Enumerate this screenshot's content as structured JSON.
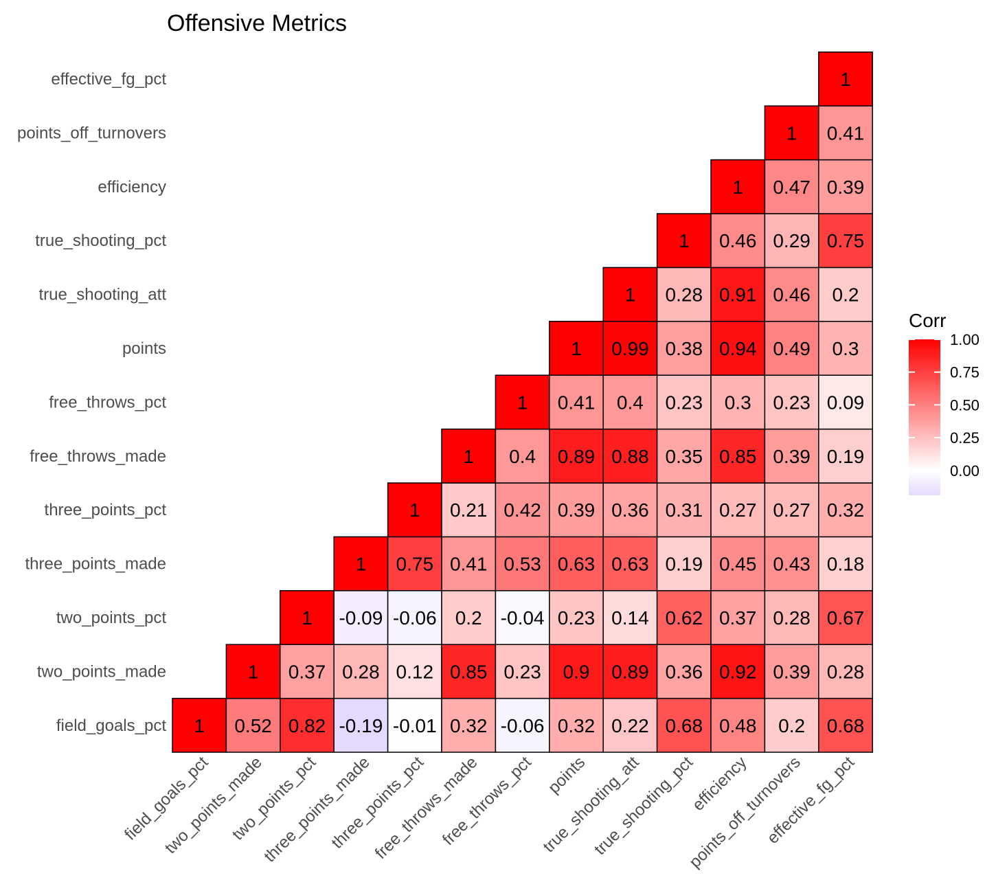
{
  "chart_data": {
    "type": "heatmap",
    "title": "Offensive Metrics",
    "variables": [
      "field_goals_pct",
      "two_points_made",
      "two_points_pct",
      "three_points_made",
      "three_points_pct",
      "free_throws_made",
      "free_throws_pct",
      "points",
      "true_shooting_att",
      "true_shooting_pct",
      "efficiency",
      "points_off_turnovers",
      "effective_fg_pct"
    ],
    "matrix": [
      [
        1,
        0.52,
        0.82,
        -0.19,
        -0.01,
        0.32,
        -0.06,
        0.32,
        0.22,
        0.68,
        0.48,
        0.2,
        0.68
      ],
      [
        null,
        1,
        0.37,
        0.28,
        0.12,
        0.85,
        0.23,
        0.9,
        0.89,
        0.36,
        0.92,
        0.39,
        0.28
      ],
      [
        null,
        null,
        1,
        -0.09,
        -0.06,
        0.2,
        -0.04,
        0.23,
        0.14,
        0.62,
        0.37,
        0.28,
        0.67
      ],
      [
        null,
        null,
        null,
        1,
        0.75,
        0.41,
        0.53,
        0.63,
        0.63,
        0.19,
        0.45,
        0.43,
        0.18
      ],
      [
        null,
        null,
        null,
        null,
        1,
        0.21,
        0.42,
        0.39,
        0.36,
        0.31,
        0.27,
        0.27,
        0.32
      ],
      [
        null,
        null,
        null,
        null,
        null,
        1,
        0.4,
        0.89,
        0.88,
        0.35,
        0.85,
        0.39,
        0.19
      ],
      [
        null,
        null,
        null,
        null,
        null,
        null,
        1,
        0.41,
        0.4,
        0.23,
        0.3,
        0.23,
        0.09
      ],
      [
        null,
        null,
        null,
        null,
        null,
        null,
        null,
        1,
        0.99,
        0.38,
        0.94,
        0.49,
        0.3
      ],
      [
        null,
        null,
        null,
        null,
        null,
        null,
        null,
        null,
        1,
        0.28,
        0.91,
        0.46,
        0.2
      ],
      [
        null,
        null,
        null,
        null,
        null,
        null,
        null,
        null,
        null,
        1,
        0.46,
        0.29,
        0.75
      ],
      [
        null,
        null,
        null,
        null,
        null,
        null,
        null,
        null,
        null,
        null,
        1,
        0.47,
        0.39
      ],
      [
        null,
        null,
        null,
        null,
        null,
        null,
        null,
        null,
        null,
        null,
        null,
        1,
        0.41
      ],
      [
        null,
        null,
        null,
        null,
        null,
        null,
        null,
        null,
        null,
        null,
        null,
        null,
        1
      ]
    ],
    "legend": {
      "title": "Corr",
      "ticks": [
        "1.00",
        "0.75",
        "0.50",
        "0.25",
        "0.00"
      ],
      "tick_values": [
        1,
        0.75,
        0.5,
        0.25,
        0
      ],
      "range": [
        -0.19,
        1
      ]
    },
    "colors": {
      "low": "#e5d9ff",
      "mid": "#ffffff",
      "high": "#ff0000",
      "border": "#000000"
    }
  }
}
